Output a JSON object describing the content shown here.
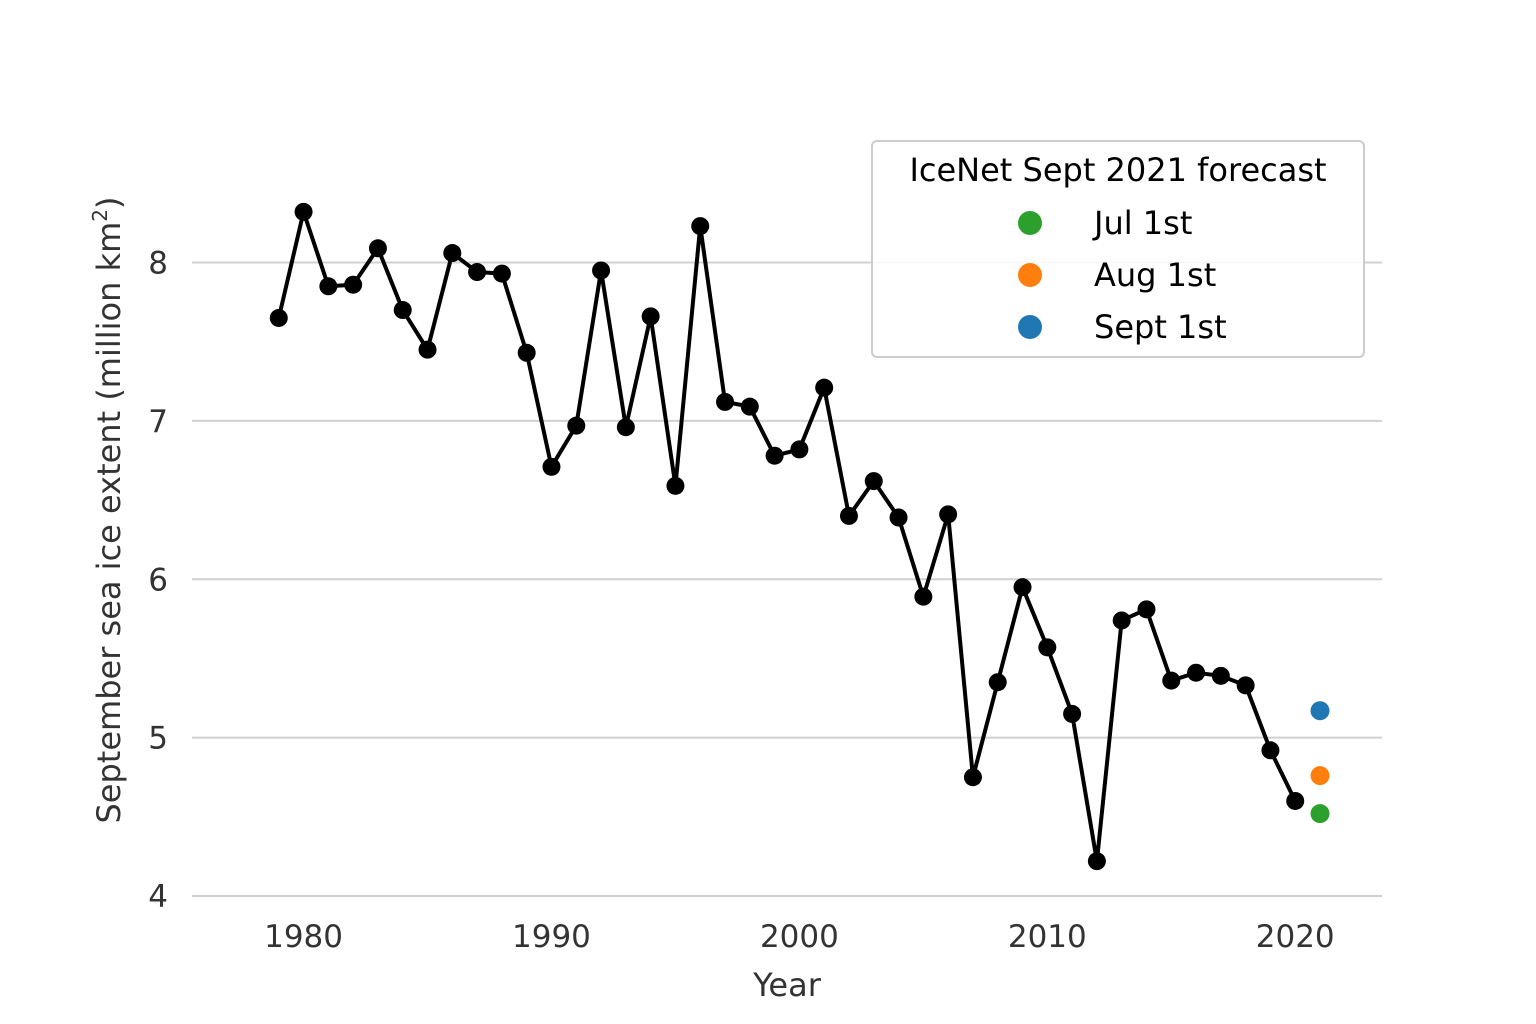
{
  "chart_data": {
    "type": "line",
    "xlabel": "Year",
    "ylabel": "September sea ice extent (million km",
    "ylabel_sup": "2",
    "ylabel_end": ")",
    "xlim": [
      1975.5,
      2023.5
    ],
    "ylim": [
      4,
      8.9
    ],
    "x_ticks": [
      1980,
      1990,
      2000,
      2010,
      2020
    ],
    "y_ticks": [
      4,
      5,
      6,
      7,
      8
    ],
    "grid": "horizontal",
    "series": [
      {
        "color": "#000000",
        "x": [
          1979,
          1980,
          1981,
          1982,
          1983,
          1984,
          1985,
          1986,
          1987,
          1988,
          1989,
          1990,
          1991,
          1992,
          1993,
          1994,
          1995,
          1996,
          1997,
          1998,
          1999,
          2000,
          2001,
          2002,
          2003,
          2004,
          2005,
          2006,
          2007,
          2008,
          2009,
          2010,
          2011,
          2012,
          2013,
          2014,
          2015,
          2016,
          2017,
          2018,
          2019,
          2020
        ],
        "y": [
          7.65,
          8.32,
          7.85,
          7.86,
          8.09,
          7.7,
          7.45,
          8.06,
          7.94,
          7.93,
          7.43,
          6.71,
          6.97,
          7.95,
          6.96,
          7.66,
          6.59,
          8.23,
          7.12,
          7.09,
          6.78,
          6.82,
          7.21,
          6.4,
          6.62,
          6.39,
          5.89,
          6.41,
          4.75,
          5.35,
          5.95,
          5.57,
          5.15,
          4.22,
          5.74,
          5.81,
          5.36,
          5.41,
          5.39,
          5.33,
          4.92,
          4.6
        ]
      }
    ],
    "forecasts": [
      {
        "label": "Jul 1st",
        "x": 2021,
        "y": 4.52,
        "color": "#2ca02c"
      },
      {
        "label": "Aug 1st",
        "x": 2021,
        "y": 4.76,
        "color": "#ff7f0e"
      },
      {
        "label": "Sept 1st",
        "x": 2021,
        "y": 5.17,
        "color": "#1f77b4"
      }
    ],
    "legend": {
      "title": "IceNet Sept 2021 forecast",
      "placement": "top-right"
    }
  }
}
